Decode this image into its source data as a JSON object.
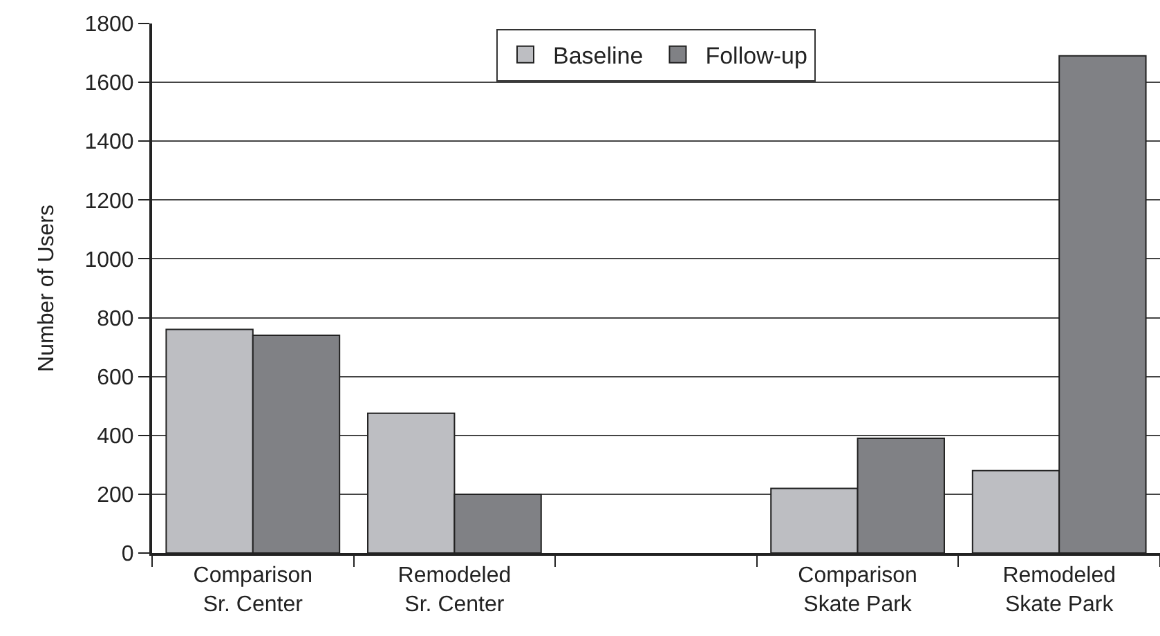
{
  "chart_data": {
    "type": "bar",
    "ylabel": "Number of Users",
    "categories": [
      "Comparison\nSr. Center",
      "Remodeled\nSr. Center",
      null,
      "Comparison\nSkate Park",
      "Remodeled\nSkate Park"
    ],
    "series": [
      {
        "name": "Baseline",
        "color": "#bdbec2",
        "values": [
          760,
          475,
          null,
          220,
          280
        ]
      },
      {
        "name": "Follow-up",
        "color": "#808185",
        "values": [
          740,
          200,
          null,
          390,
          1690
        ]
      }
    ],
    "ylim": [
      0,
      1800
    ],
    "yticks": [
      0,
      200,
      400,
      600,
      800,
      1000,
      1200,
      1400,
      1600,
      1800
    ],
    "grid": "y",
    "legend": "top"
  }
}
